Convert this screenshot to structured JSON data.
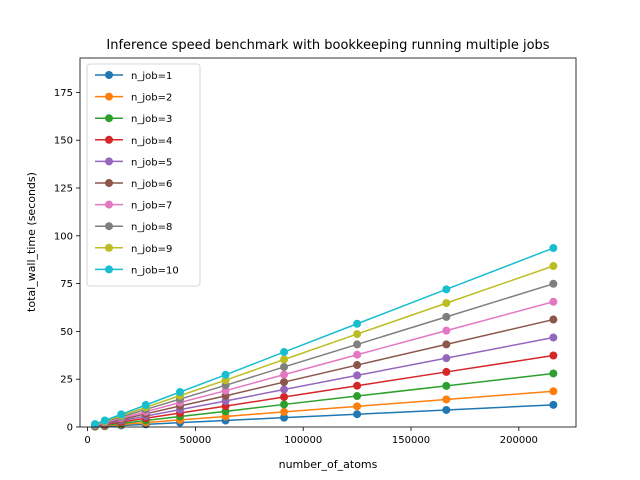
{
  "chart_data": {
    "type": "line",
    "title": "Inference speed benchmark with bookkeeping running multiple jobs",
    "xlabel": "number_of_atoms",
    "ylabel": "total_wall_time (seconds)",
    "xlim": [
      -3500,
      226500
    ],
    "ylim": [
      0,
      193
    ],
    "xticks": [
      0,
      50000,
      100000,
      150000,
      200000
    ],
    "yticks": [
      0,
      25,
      50,
      75,
      100,
      125,
      150,
      175
    ],
    "grid": false,
    "legend_position": "top-left",
    "x": [
      3456,
      8000,
      15625,
      27000,
      42875,
      64000,
      91125,
      125000,
      166375,
      216000
    ],
    "series": [
      {
        "name": "n_job=1",
        "color": "#1f77b4",
        "values": [
          0.2,
          0.4,
          0.8,
          1.4,
          2.3,
          3.4,
          4.9,
          6.7,
          8.9,
          11.6
        ]
      },
      {
        "name": "n_job=2",
        "color": "#ff7f0e",
        "values": [
          0.3,
          0.7,
          1.3,
          2.3,
          3.7,
          5.5,
          7.9,
          10.8,
          14.4,
          18.7
        ]
      },
      {
        "name": "n_job=3",
        "color": "#2ca02c",
        "values": [
          0.4,
          1.0,
          1.9,
          3.4,
          5.5,
          8.2,
          11.8,
          16.2,
          21.5,
          28.0
        ]
      },
      {
        "name": "n_job=4",
        "color": "#d62728",
        "values": [
          0.6,
          1.3,
          2.6,
          4.6,
          7.3,
          10.9,
          15.7,
          21.6,
          28.8,
          37.4
        ]
      },
      {
        "name": "n_job=5",
        "color": "#9467bd",
        "values": [
          0.7,
          1.7,
          3.3,
          5.7,
          9.1,
          13.6,
          19.6,
          27.0,
          36.0,
          46.8
        ]
      },
      {
        "name": "n_job=6",
        "color": "#8c564b",
        "values": [
          0.9,
          2.0,
          3.9,
          6.9,
          11.0,
          16.3,
          23.5,
          32.4,
          43.2,
          56.2
        ]
      },
      {
        "name": "n_job=7",
        "color": "#e377c2",
        "values": [
          1.0,
          2.3,
          4.6,
          8.0,
          12.8,
          19.0,
          27.4,
          37.8,
          50.4,
          65.5
        ]
      },
      {
        "name": "n_job=8",
        "color": "#7f7f7f",
        "values": [
          1.2,
          2.7,
          5.3,
          9.2,
          14.6,
          21.8,
          31.4,
          43.2,
          57.6,
          74.9
        ]
      },
      {
        "name": "n_job=9",
        "color": "#bcbd22",
        "values": [
          1.3,
          3.0,
          5.9,
          10.3,
          16.4,
          24.5,
          35.3,
          48.6,
          64.8,
          84.2
        ]
      },
      {
        "name": "n_job=10",
        "color": "#17becf",
        "values": [
          1.5,
          3.4,
          6.6,
          11.5,
          18.3,
          27.3,
          39.2,
          54.0,
          72.0,
          93.6
        ]
      }
    ]
  }
}
